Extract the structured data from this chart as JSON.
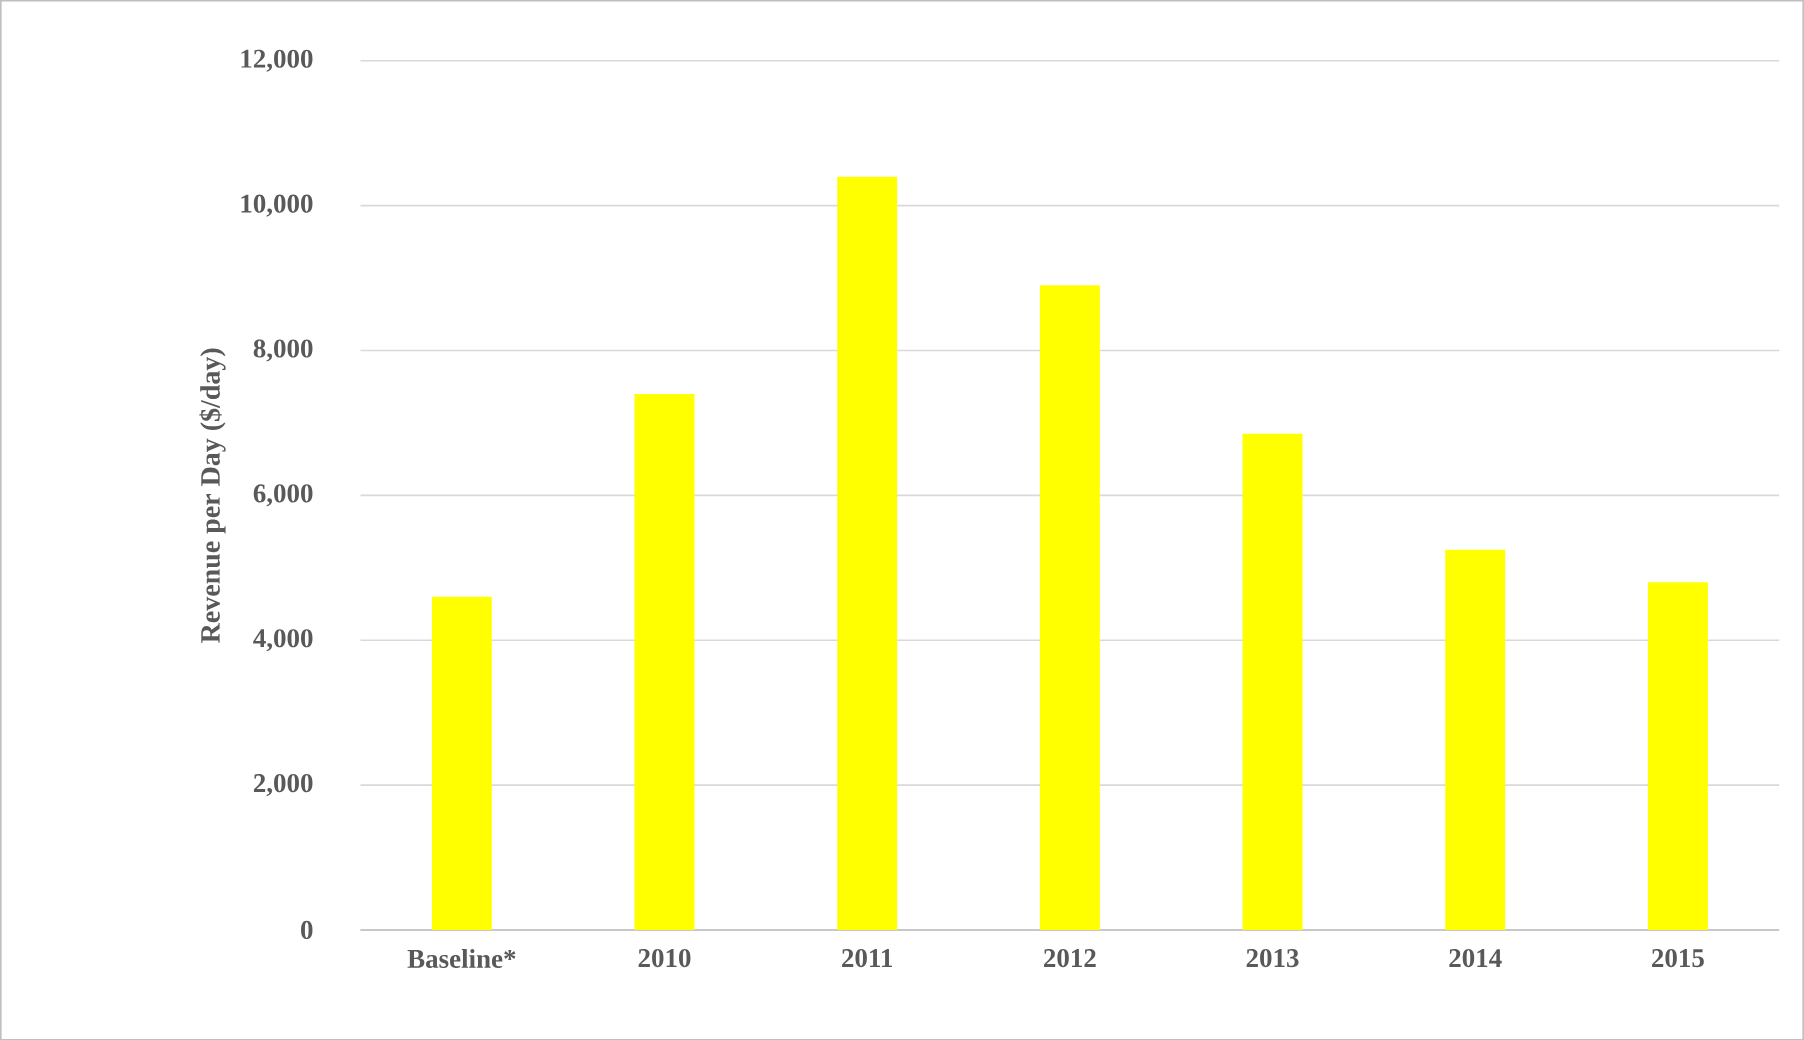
{
  "chart_data": {
    "type": "bar",
    "ylabel": "Revenue per Day ($/day)",
    "categories": [
      "Baseline*",
      "2010",
      "2011",
      "2012",
      "2013",
      "2014",
      "2015"
    ],
    "values": [
      4600,
      7400,
      10400,
      8900,
      6850,
      5250,
      4800
    ],
    "color": "#ffff00",
    "ylim": [
      0,
      12000
    ],
    "yticks": [
      {
        "value": 0,
        "label": "0"
      },
      {
        "value": 2000,
        "label": "2,000"
      },
      {
        "value": 4000,
        "label": "4,000"
      },
      {
        "value": 6000,
        "label": "6,000"
      },
      {
        "value": 8000,
        "label": "8,000"
      },
      {
        "value": 10000,
        "label": "10,000"
      },
      {
        "value": 12000,
        "label": "12,000"
      }
    ],
    "grid": "y"
  }
}
